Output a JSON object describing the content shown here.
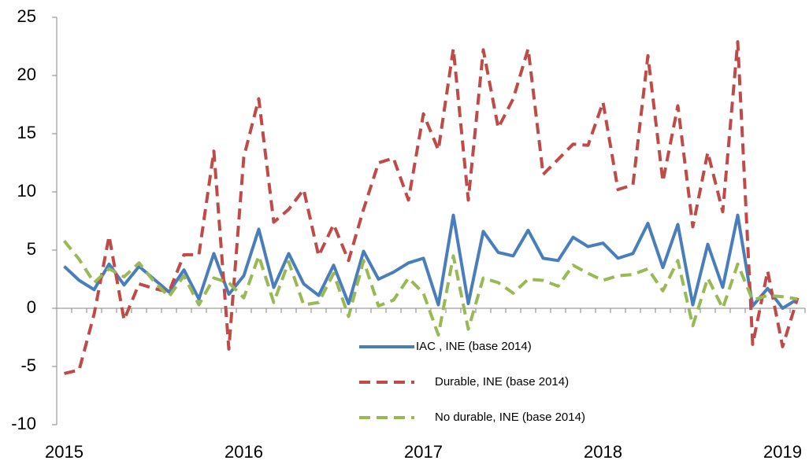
{
  "chart_data": {
    "type": "line",
    "categories": [
      "2015",
      null,
      null,
      null,
      null,
      null,
      null,
      null,
      null,
      null,
      null,
      null,
      "2016",
      null,
      null,
      null,
      null,
      null,
      null,
      null,
      null,
      null,
      null,
      null,
      "2017",
      null,
      null,
      null,
      null,
      null,
      null,
      null,
      null,
      null,
      null,
      null,
      "2018",
      null,
      null,
      null,
      null,
      null,
      null,
      null,
      null,
      null,
      null,
      null,
      "2019",
      null
    ],
    "series": [
      {
        "name": "IAC , INE (base 2014)",
        "color": "#4a7ebb",
        "dash": false,
        "values": [
          3.6,
          2.4,
          1.6,
          3.8,
          2.0,
          3.6,
          2.5,
          1.4,
          3.3,
          0.8,
          4.7,
          1.2,
          2.8,
          6.8,
          1.8,
          4.7,
          2.1,
          1.1,
          3.7,
          0.4,
          4.9,
          2.5,
          3.1,
          3.9,
          4.3,
          0.3,
          8.0,
          0.4,
          6.6,
          4.8,
          4.5,
          6.7,
          4.3,
          4.1,
          6.1,
          5.3,
          5.6,
          4.3,
          4.7,
          7.3,
          3.5,
          7.2,
          0.3,
          5.5,
          1.8,
          8.0,
          0.2,
          1.7,
          0.0,
          0.8
        ]
      },
      {
        "name": "Durable, INE (base 2014)",
        "color": "#be4b48",
        "dash": true,
        "values": [
          -5.6,
          -5.3,
          -0.5,
          6.2,
          -1.0,
          2.1,
          1.7,
          1.4,
          4.6,
          4.6,
          13.5,
          -3.5,
          13.0,
          18.0,
          7.4,
          8.5,
          10.2,
          4.5,
          7.2,
          4.1,
          8.5,
          12.5,
          12.9,
          9.3,
          16.7,
          13.6,
          22.3,
          9.3,
          22.2,
          15.5,
          18.0,
          22.3,
          11.5,
          12.8,
          14.1,
          14.0,
          17.7,
          10.2,
          10.6,
          21.7,
          10.9,
          17.4,
          7.0,
          13.4,
          8.3,
          22.9,
          -3.1,
          3.2,
          -3.3,
          0.9
        ]
      },
      {
        "name": "No durable, INE (base 2014)",
        "color": "#98b954",
        "dash": true,
        "values": [
          5.8,
          4.2,
          2.2,
          3.4,
          2.7,
          3.9,
          2.3,
          1.0,
          2.8,
          0.3,
          2.6,
          2.2,
          0.9,
          4.5,
          0.5,
          4.0,
          0.3,
          0.5,
          3.0,
          -0.7,
          4.1,
          0.2,
          0.7,
          2.6,
          1.3,
          -2.3,
          4.5,
          -1.8,
          2.6,
          2.2,
          1.3,
          2.5,
          2.4,
          1.9,
          3.7,
          3.0,
          2.4,
          2.8,
          2.9,
          3.4,
          1.5,
          4.1,
          -1.5,
          2.6,
          0.0,
          3.8,
          0.7,
          1.1,
          1.0,
          0.8
        ]
      }
    ],
    "ylim": [
      -10,
      25
    ],
    "yticks": [
      -10,
      -5,
      0,
      5,
      10,
      15,
      20,
      25
    ],
    "grid": false
  }
}
